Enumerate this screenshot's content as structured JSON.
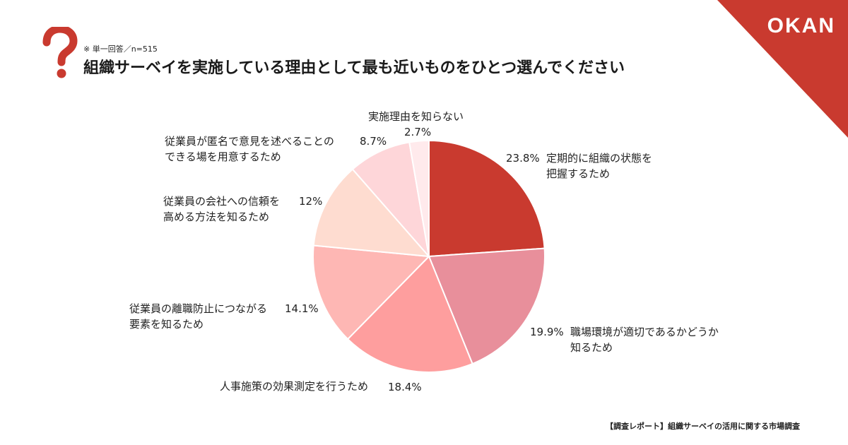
{
  "brand": "OKAN",
  "note": "※ 単一回答／n=515",
  "title": "組織サーベイを実施している理由として最も近いものをひとつ選んでください",
  "footer": "【調査レポート】組織サーベイの活用に関する市場調査",
  "colors": {
    "accent": "#c93a2f"
  },
  "chart_data": {
    "type": "pie",
    "title": "組織サーベイを実施している理由として最も近いものをひとつ選んでください",
    "unit": "%",
    "slices": [
      {
        "label": "定期的に組織の状態を\n把握するため",
        "value": 23.8,
        "value_text": "23.8%",
        "color": "#c93a2f"
      },
      {
        "label": "職場環境が適切であるかどうか\n知るため",
        "value": 19.9,
        "value_text": "19.9%",
        "color": "#e88f9b"
      },
      {
        "label": "人事施策の効果測定を行うため",
        "value": 18.4,
        "value_text": "18.4%",
        "color": "#fe9e9e"
      },
      {
        "label": "従業員の離職防止につながる\n要素を知るため",
        "value": 14.1,
        "value_text": "14.1%",
        "color": "#feb7b4"
      },
      {
        "label": "従業員の会社への信頼を\n高める方法を知るため",
        "value": 12.0,
        "value_text": "12%",
        "color": "#fedcd0"
      },
      {
        "label": "従業員が匿名で意見を述べることの\nできる場を用意するため",
        "value": 8.7,
        "value_text": "8.7%",
        "color": "#fed6d9"
      },
      {
        "label": "実施理由を知らない",
        "value": 2.7,
        "value_text": "2.7%",
        "color": "#ffeaec"
      }
    ]
  }
}
